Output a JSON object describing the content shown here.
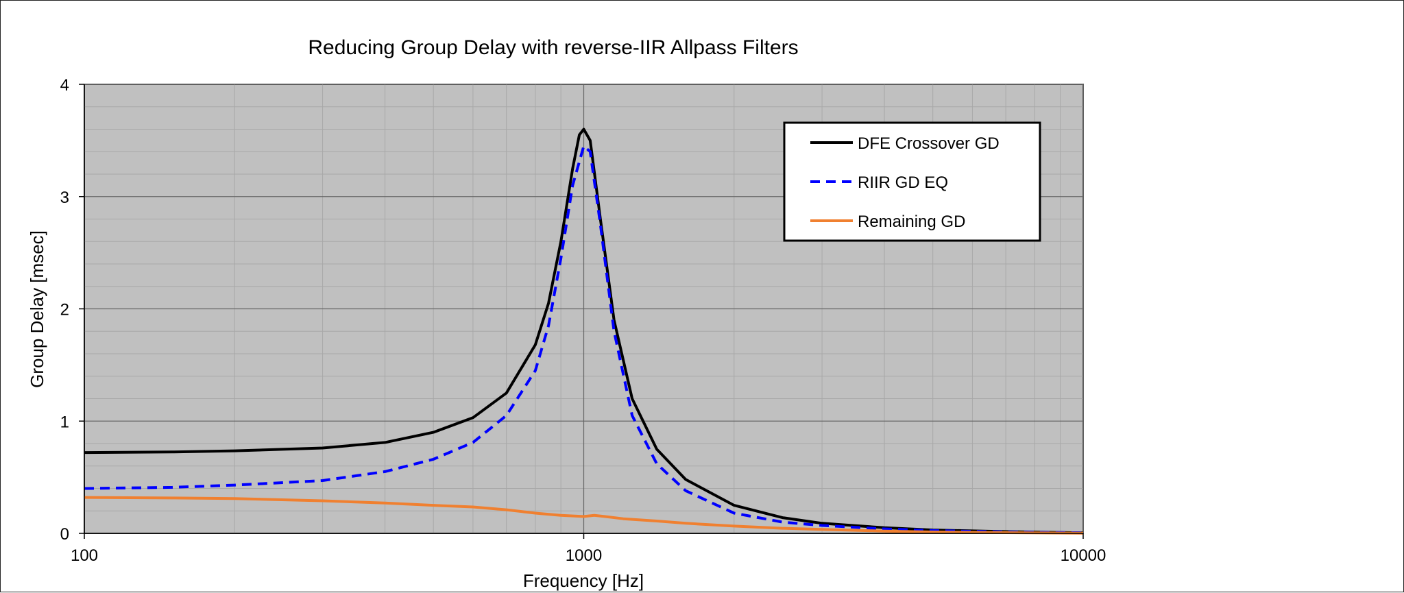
{
  "chart_data": {
    "type": "line",
    "title": "Reducing Group Delay with reverse-IIR Allpass Filters",
    "xlabel": "Frequency [Hz]",
    "ylabel": "Group Delay [msec]",
    "xscale": "log",
    "xlim": [
      100,
      10000
    ],
    "ylim": [
      0,
      4
    ],
    "xticks": [
      100,
      1000,
      10000
    ],
    "xtick_labels": [
      "100",
      "1000",
      "10000"
    ],
    "yticks": [
      0,
      1,
      2,
      3,
      4
    ],
    "ytick_labels": [
      "0",
      "1",
      "2",
      "3",
      "4"
    ],
    "grid": true,
    "background": "#c0c0c0",
    "legend_position": "top-right",
    "series": [
      {
        "name": "DFE Crossover GD",
        "color": "#000000",
        "style": "solid",
        "x": [
          100,
          150,
          200,
          300,
          400,
          500,
          600,
          700,
          800,
          850,
          900,
          950,
          980,
          1000,
          1030,
          1080,
          1150,
          1250,
          1400,
          1600,
          2000,
          2500,
          3000,
          4000,
          5000,
          7000,
          10000
        ],
        "y": [
          0.72,
          0.725,
          0.735,
          0.76,
          0.81,
          0.9,
          1.03,
          1.25,
          1.68,
          2.05,
          2.6,
          3.25,
          3.55,
          3.6,
          3.5,
          2.8,
          1.9,
          1.2,
          0.75,
          0.48,
          0.25,
          0.14,
          0.09,
          0.05,
          0.03,
          0.015,
          0.005
        ]
      },
      {
        "name": "RIIR GD EQ",
        "color": "#0000ff",
        "style": "dashed",
        "x": [
          100,
          150,
          200,
          300,
          400,
          500,
          600,
          700,
          800,
          850,
          900,
          950,
          1000,
          1030,
          1080,
          1150,
          1250,
          1400,
          1600,
          2000,
          2500,
          3000,
          4000,
          5000,
          7000,
          10000
        ],
        "y": [
          0.4,
          0.41,
          0.43,
          0.47,
          0.55,
          0.66,
          0.81,
          1.05,
          1.45,
          1.85,
          2.45,
          3.1,
          3.45,
          3.4,
          2.75,
          1.8,
          1.05,
          0.62,
          0.38,
          0.18,
          0.1,
          0.07,
          0.04,
          0.025,
          0.012,
          0.005
        ]
      },
      {
        "name": "Remaining GD",
        "color": "#f08030",
        "style": "solid",
        "x": [
          100,
          150,
          200,
          300,
          400,
          500,
          600,
          700,
          800,
          900,
          1000,
          1050,
          1100,
          1200,
          1400,
          1600,
          2000,
          2500,
          3000,
          4000,
          5000,
          7000,
          10000
        ],
        "y": [
          0.32,
          0.315,
          0.31,
          0.29,
          0.27,
          0.25,
          0.235,
          0.21,
          0.18,
          0.16,
          0.15,
          0.16,
          0.15,
          0.13,
          0.11,
          0.09,
          0.065,
          0.045,
          0.035,
          0.02,
          0.012,
          0.006,
          0.002
        ]
      }
    ]
  }
}
